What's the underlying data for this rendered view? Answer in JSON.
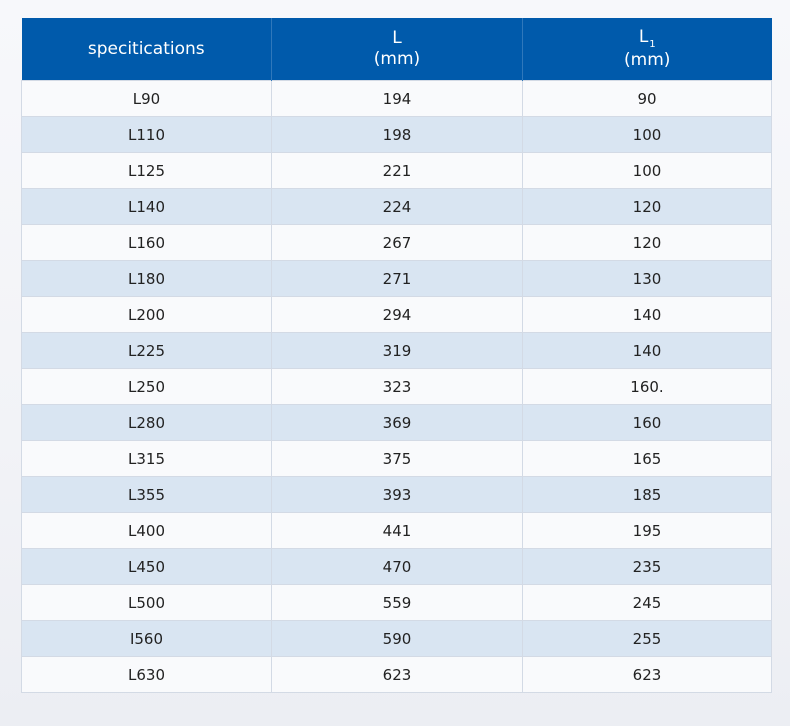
{
  "table": {
    "headers": {
      "spec": "specitications",
      "l": "L",
      "l_unit": "(mm)",
      "l1_main": "L",
      "l1_sub": "1",
      "l1_unit": "(mm)"
    },
    "rows": [
      [
        "L90",
        "194",
        "90"
      ],
      [
        "L110",
        "198",
        "100"
      ],
      [
        "L125",
        "221",
        "100"
      ],
      [
        "L140",
        "224",
        "120"
      ],
      [
        "L160",
        "267",
        "120"
      ],
      [
        "L180",
        "271",
        "130"
      ],
      [
        "L200",
        "294",
        "140"
      ],
      [
        "L225",
        "319",
        "140"
      ],
      [
        "L250",
        "323",
        "160."
      ],
      [
        "L280",
        "369",
        "160"
      ],
      [
        "L315",
        "375",
        "165"
      ],
      [
        "L355",
        "393",
        "185"
      ],
      [
        "L400",
        "441",
        "195"
      ],
      [
        "L450",
        "470",
        "235"
      ],
      [
        "L500",
        "559",
        "245"
      ],
      [
        "I560",
        "590",
        "255"
      ],
      [
        "L630",
        "623",
        "623"
      ]
    ]
  }
}
